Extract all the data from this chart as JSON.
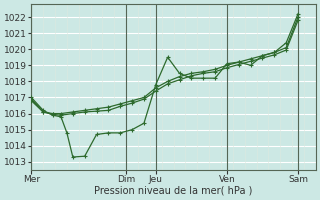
{
  "bg_color": "#cce8e4",
  "grid_color_h": "#ffffff",
  "grid_color_v": "#aacccc",
  "day_line_color": "#556655",
  "line_color": "#2d6a2d",
  "xlabel": "Pression niveau de la mer( hPa )",
  "ylim": [
    1012.5,
    1022.8
  ],
  "yticks": [
    1013,
    1014,
    1015,
    1016,
    1017,
    1018,
    1019,
    1020,
    1021,
    1022
  ],
  "day_labels": [
    "Mer",
    "Dim",
    "Jeu",
    "Ven",
    "Sam"
  ],
  "day_x": [
    0.0,
    8.0,
    10.5,
    16.5,
    22.5
  ],
  "xlim": [
    0,
    24
  ],
  "series_low_x": [
    0.0,
    1.0,
    1.8,
    2.5,
    3.0,
    3.5,
    4.5,
    5.5,
    6.5,
    7.5,
    8.5,
    9.5,
    10.5,
    11.5,
    12.5,
    13.5,
    14.5,
    15.5,
    16.5,
    17.5,
    18.5,
    19.5,
    20.5,
    21.5,
    22.5
  ],
  "series_low_y": [
    1017.0,
    1016.2,
    1015.9,
    1015.8,
    1014.8,
    1013.3,
    1013.35,
    1014.7,
    1014.8,
    1014.8,
    1015.0,
    1015.4,
    1017.8,
    1019.5,
    1018.5,
    1018.2,
    1018.2,
    1018.2,
    1019.1,
    1019.2,
    1019.0,
    1019.6,
    1019.8,
    1020.4,
    1022.2
  ],
  "series_mid_x": [
    0.0,
    1.0,
    1.8,
    2.5,
    3.5,
    4.5,
    5.5,
    6.5,
    7.5,
    8.5,
    9.5,
    10.5,
    11.5,
    12.5,
    13.5,
    14.5,
    15.5,
    16.5,
    17.5,
    18.5,
    19.5,
    20.5,
    21.5,
    22.5
  ],
  "series_mid_y": [
    1016.8,
    1016.1,
    1016.0,
    1016.0,
    1016.1,
    1016.2,
    1016.3,
    1016.4,
    1016.6,
    1016.8,
    1017.0,
    1017.6,
    1018.0,
    1018.3,
    1018.5,
    1018.6,
    1018.75,
    1019.0,
    1019.2,
    1019.4,
    1019.6,
    1019.8,
    1020.1,
    1022.0
  ],
  "series_high_x": [
    0.0,
    1.0,
    1.8,
    2.5,
    3.5,
    4.5,
    5.5,
    6.5,
    7.5,
    8.5,
    9.5,
    10.5,
    11.5,
    12.5,
    13.5,
    14.5,
    15.5,
    16.5,
    17.5,
    18.5,
    19.5,
    20.5,
    21.5,
    22.5
  ],
  "series_high_y": [
    1016.9,
    1016.1,
    1015.95,
    1015.9,
    1016.0,
    1016.1,
    1016.15,
    1016.2,
    1016.45,
    1016.65,
    1016.9,
    1017.4,
    1017.85,
    1018.1,
    1018.35,
    1018.5,
    1018.6,
    1018.85,
    1019.05,
    1019.25,
    1019.45,
    1019.65,
    1019.95,
    1021.8
  ]
}
